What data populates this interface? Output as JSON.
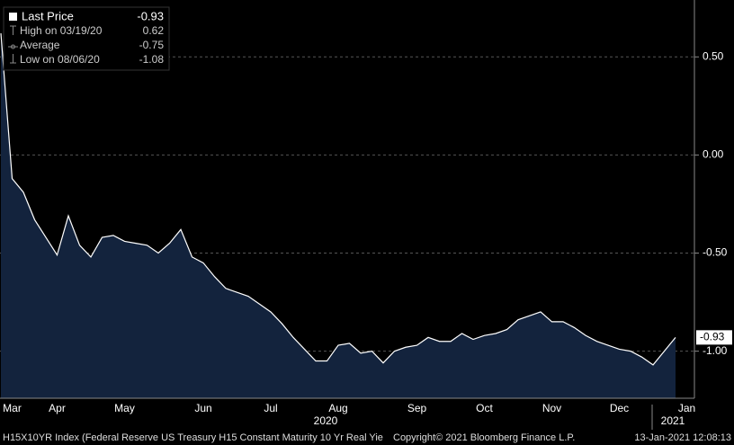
{
  "chart_data": {
    "type": "area",
    "categories": [
      null,
      "Mar",
      null,
      null,
      null,
      "Apr",
      null,
      null,
      null,
      null,
      null,
      "May",
      null,
      null,
      null,
      null,
      null,
      null,
      "Jun",
      null,
      null,
      null,
      null,
      null,
      "Jul",
      null,
      null,
      null,
      null,
      null,
      "Aug",
      null,
      null,
      null,
      null,
      null,
      null,
      "Sep",
      null,
      null,
      null,
      null,
      null,
      "Oct",
      null,
      null,
      null,
      null,
      null,
      "Nov",
      null,
      null,
      null,
      null,
      null,
      "Dec",
      null,
      null,
      null,
      null,
      null,
      "Jan"
    ],
    "series": [
      {
        "name": "Last Price",
        "color": "#ffffff",
        "fill": "#13233d",
        "values": [
          0.62,
          -0.12,
          -0.19,
          -0.33,
          -0.42,
          -0.51,
          -0.31,
          -0.46,
          -0.52,
          -0.42,
          -0.41,
          -0.44,
          -0.45,
          -0.46,
          -0.5,
          -0.45,
          -0.38,
          -0.52,
          -0.55,
          -0.62,
          -0.68,
          -0.7,
          -0.72,
          -0.76,
          -0.8,
          -0.86,
          -0.93,
          -0.99,
          -1.05,
          -1.05,
          -0.97,
          -0.96,
          -1.01,
          -1.0,
          -1.06,
          -1.0,
          -0.98,
          -0.97,
          -0.93,
          -0.95,
          -0.95,
          -0.91,
          -0.94,
          -0.92,
          -0.91,
          -0.89,
          -0.84,
          -0.82,
          -0.8,
          -0.85,
          -0.85,
          -0.88,
          -0.92,
          -0.95,
          -0.97,
          -0.99,
          -1.0,
          -1.03,
          -1.07,
          -1.0,
          -0.93,
          null
        ]
      }
    ],
    "year_labels": [
      "2020",
      "2021"
    ],
    "ylim": [
      -1.24,
      0.79
    ],
    "yticks": [
      {
        "value": 0.5,
        "label": "0.50"
      },
      {
        "value": 0,
        "label": "0.00"
      },
      {
        "value": -0.5,
        "label": "-0.50"
      },
      {
        "value": -1,
        "label": "-1.00"
      }
    ],
    "grid": true,
    "legend": [
      {
        "label": "Last Price",
        "value": -0.93
      },
      {
        "label": "High on 03/19/20",
        "value": 0.62
      },
      {
        "label": "Average",
        "value": -0.75
      },
      {
        "label": "Low on 08/06/20",
        "value": -1.08
      }
    ],
    "footer": [
      "H15X10YR Index (Federal Reserve US Treasury H15 Constant Maturity 10 Yr Real Yie",
      "Copyright© 2021 Bloomberg Finance L.P.",
      "13-Jan-2021 12:08:13"
    ]
  }
}
